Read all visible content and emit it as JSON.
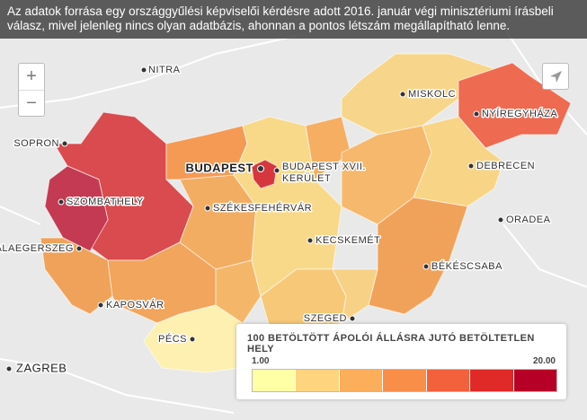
{
  "caption": "Az adatok forrása egy országgyűlési képviselői kérdésre adott 2016. január végi minisztériumi írásbeli válasz, mivel jelenleg nincs olyan adatbázis, ahonnan a pontos létszám megállapítható lenne.",
  "cities": {
    "nitra": "NITRA",
    "sopron": "SOPRON",
    "budapest": "BUDAPEST",
    "budapest_xvii": [
      "BUDAPEST XVII.",
      "KERÜLET"
    ],
    "szombathely": "SZOMBATHELY",
    "szekesfehervar": "SZÉKESFEHÉRVÁR",
    "zalaegerszeg": "ZALAEGERSZEG",
    "kecskemet": "KECSKEMÉT",
    "miskolc": "MISKOLC",
    "nyiregyhaza": "NYÍREGYHÁZA",
    "debrecen": "DEBRECEN",
    "oradea": "ORADEA",
    "bekescsaba": "BÉKÉSCSABA",
    "kaposvar": "KAPOSVÁR",
    "szeged": "SZEGED",
    "pecs": "PÉCS",
    "zagreb": "ZAGREB"
  },
  "legend": {
    "title": "100 BETÖLTÖTT ÁPOLÓI ÁLLÁSRA JUTÓ BETÖLTETLEN HELY",
    "min": "1.00",
    "max": "20.00",
    "colors": [
      "#ffffa6",
      "#fed47f",
      "#fcae5a",
      "#f98e48",
      "#f2603c",
      "#df2a28",
      "#b60026"
    ]
  },
  "controls": {
    "zoom_in": "+",
    "zoom_out": "−"
  }
}
